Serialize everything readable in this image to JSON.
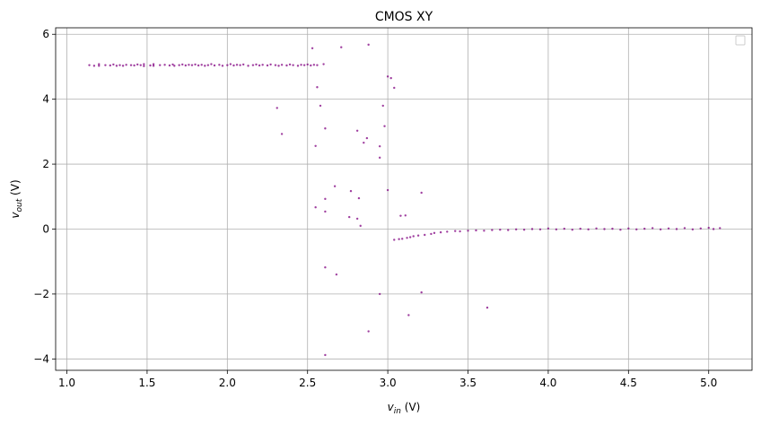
{
  "chart_data": {
    "type": "scatter",
    "title": "CMOS XY",
    "xlabel_main": "v",
    "xlabel_sub": "in",
    "xlabel_unit": " (V)",
    "ylabel_main": "v",
    "ylabel_sub": "out",
    "ylabel_unit": " (V)",
    "xlim": [
      0.93,
      5.27
    ],
    "ylim": [
      -4.35,
      6.2
    ],
    "xticks": [
      1.0,
      1.5,
      2.0,
      2.5,
      3.0,
      3.5,
      4.0,
      4.5,
      5.0
    ],
    "xtick_labels": [
      "1.0",
      "1.5",
      "2.0",
      "2.5",
      "3.0",
      "3.5",
      "4.0",
      "4.5",
      "5.0"
    ],
    "yticks": [
      -4,
      -2,
      0,
      2,
      4,
      6
    ],
    "ytick_labels": [
      "−4",
      "−2",
      "0",
      "2",
      "4",
      "6"
    ],
    "grid": true,
    "legend": "top-right",
    "marker_color": "#800080",
    "points": [
      {
        "x": 1.14,
        "y": 5.05
      },
      {
        "x": 1.17,
        "y": 5.03
      },
      {
        "x": 1.2,
        "y": 5.08
      },
      {
        "x": 1.2,
        "y": 5.03
      },
      {
        "x": 1.24,
        "y": 5.05
      },
      {
        "x": 1.27,
        "y": 5.04
      },
      {
        "x": 1.29,
        "y": 5.07
      },
      {
        "x": 1.31,
        "y": 5.03
      },
      {
        "x": 1.33,
        "y": 5.05
      },
      {
        "x": 1.35,
        "y": 5.03
      },
      {
        "x": 1.37,
        "y": 5.06
      },
      {
        "x": 1.4,
        "y": 5.05
      },
      {
        "x": 1.42,
        "y": 5.04
      },
      {
        "x": 1.44,
        "y": 5.07
      },
      {
        "x": 1.46,
        "y": 5.05
      },
      {
        "x": 1.48,
        "y": 5.08
      },
      {
        "x": 1.48,
        "y": 5.02
      },
      {
        "x": 1.52,
        "y": 5.04
      },
      {
        "x": 1.54,
        "y": 5.08
      },
      {
        "x": 1.54,
        "y": 5.03
      },
      {
        "x": 1.58,
        "y": 5.05
      },
      {
        "x": 1.61,
        "y": 5.06
      },
      {
        "x": 1.64,
        "y": 5.04
      },
      {
        "x": 1.66,
        "y": 5.07
      },
      {
        "x": 1.67,
        "y": 5.03
      },
      {
        "x": 1.7,
        "y": 5.05
      },
      {
        "x": 1.72,
        "y": 5.07
      },
      {
        "x": 1.74,
        "y": 5.04
      },
      {
        "x": 1.76,
        "y": 5.06
      },
      {
        "x": 1.78,
        "y": 5.05
      },
      {
        "x": 1.8,
        "y": 5.07
      },
      {
        "x": 1.82,
        "y": 5.04
      },
      {
        "x": 1.84,
        "y": 5.06
      },
      {
        "x": 1.86,
        "y": 5.03
      },
      {
        "x": 1.88,
        "y": 5.05
      },
      {
        "x": 1.9,
        "y": 5.08
      },
      {
        "x": 1.92,
        "y": 5.04
      },
      {
        "x": 1.95,
        "y": 5.06
      },
      {
        "x": 1.97,
        "y": 5.03
      },
      {
        "x": 2.0,
        "y": 5.05
      },
      {
        "x": 2.02,
        "y": 5.08
      },
      {
        "x": 2.04,
        "y": 5.04
      },
      {
        "x": 2.06,
        "y": 5.06
      },
      {
        "x": 2.08,
        "y": 5.05
      },
      {
        "x": 2.1,
        "y": 5.07
      },
      {
        "x": 2.13,
        "y": 5.03
      },
      {
        "x": 2.16,
        "y": 5.05
      },
      {
        "x": 2.18,
        "y": 5.07
      },
      {
        "x": 2.2,
        "y": 5.04
      },
      {
        "x": 2.22,
        "y": 5.06
      },
      {
        "x": 2.25,
        "y": 5.04
      },
      {
        "x": 2.27,
        "y": 5.07
      },
      {
        "x": 2.3,
        "y": 5.05
      },
      {
        "x": 2.32,
        "y": 5.03
      },
      {
        "x": 2.34,
        "y": 5.06
      },
      {
        "x": 2.37,
        "y": 5.04
      },
      {
        "x": 2.39,
        "y": 5.07
      },
      {
        "x": 2.41,
        "y": 5.05
      },
      {
        "x": 2.44,
        "y": 5.03
      },
      {
        "x": 2.46,
        "y": 5.06
      },
      {
        "x": 2.48,
        "y": 5.05
      },
      {
        "x": 2.5,
        "y": 5.07
      },
      {
        "x": 2.52,
        "y": 5.04
      },
      {
        "x": 2.54,
        "y": 5.06
      },
      {
        "x": 2.56,
        "y": 5.05
      },
      {
        "x": 2.6,
        "y": 5.08
      },
      {
        "x": 2.53,
        "y": 5.57
      },
      {
        "x": 2.71,
        "y": 5.6
      },
      {
        "x": 2.88,
        "y": 5.68
      },
      {
        "x": 2.56,
        "y": 4.37
      },
      {
        "x": 2.58,
        "y": 3.8
      },
      {
        "x": 2.31,
        "y": 3.73
      },
      {
        "x": 2.34,
        "y": 2.93
      },
      {
        "x": 2.61,
        "y": 3.1
      },
      {
        "x": 2.55,
        "y": 2.56
      },
      {
        "x": 2.81,
        "y": 3.03
      },
      {
        "x": 2.87,
        "y": 2.8
      },
      {
        "x": 2.85,
        "y": 2.66
      },
      {
        "x": 2.95,
        "y": 2.55
      },
      {
        "x": 2.95,
        "y": 2.2
      },
      {
        "x": 2.97,
        "y": 3.8
      },
      {
        "x": 2.98,
        "y": 3.17
      },
      {
        "x": 3.0,
        "y": 4.7
      },
      {
        "x": 3.02,
        "y": 4.65
      },
      {
        "x": 3.04,
        "y": 4.35
      },
      {
        "x": 2.67,
        "y": 1.32
      },
      {
        "x": 2.77,
        "y": 1.17
      },
      {
        "x": 2.82,
        "y": 0.95
      },
      {
        "x": 2.61,
        "y": 0.93
      },
      {
        "x": 2.61,
        "y": 0.54
      },
      {
        "x": 2.55,
        "y": 0.67
      },
      {
        "x": 2.76,
        "y": 0.37
      },
      {
        "x": 2.81,
        "y": 0.32
      },
      {
        "x": 2.83,
        "y": 0.1
      },
      {
        "x": 3.0,
        "y": 1.2
      },
      {
        "x": 3.08,
        "y": 0.41
      },
      {
        "x": 3.11,
        "y": 0.42
      },
      {
        "x": 3.21,
        "y": 1.12
      },
      {
        "x": 3.04,
        "y": -0.33
      },
      {
        "x": 3.07,
        "y": -0.31
      },
      {
        "x": 3.09,
        "y": -0.3
      },
      {
        "x": 3.12,
        "y": -0.27
      },
      {
        "x": 3.14,
        "y": -0.25
      },
      {
        "x": 3.16,
        "y": -0.22
      },
      {
        "x": 3.19,
        "y": -0.2
      },
      {
        "x": 3.23,
        "y": -0.18
      },
      {
        "x": 3.27,
        "y": -0.15
      },
      {
        "x": 3.29,
        "y": -0.12
      },
      {
        "x": 3.33,
        "y": -0.1
      },
      {
        "x": 3.37,
        "y": -0.08
      },
      {
        "x": 3.42,
        "y": -0.06
      },
      {
        "x": 3.45,
        "y": -0.07
      },
      {
        "x": 3.5,
        "y": -0.05
      },
      {
        "x": 3.55,
        "y": -0.04
      },
      {
        "x": 3.6,
        "y": -0.05
      },
      {
        "x": 3.65,
        "y": -0.03
      },
      {
        "x": 3.7,
        "y": -0.02
      },
      {
        "x": 3.75,
        "y": -0.03
      },
      {
        "x": 3.8,
        "y": -0.01
      },
      {
        "x": 3.85,
        "y": -0.02
      },
      {
        "x": 3.9,
        "y": 0.0
      },
      {
        "x": 3.95,
        "y": -0.01
      },
      {
        "x": 4.0,
        "y": 0.02
      },
      {
        "x": 4.05,
        "y": -0.01
      },
      {
        "x": 4.1,
        "y": 0.01
      },
      {
        "x": 4.15,
        "y": -0.02
      },
      {
        "x": 4.2,
        "y": 0.01
      },
      {
        "x": 4.25,
        "y": -0.01
      },
      {
        "x": 4.3,
        "y": 0.02
      },
      {
        "x": 4.35,
        "y": 0.0
      },
      {
        "x": 4.4,
        "y": 0.01
      },
      {
        "x": 4.45,
        "y": -0.02
      },
      {
        "x": 4.5,
        "y": 0.02
      },
      {
        "x": 4.55,
        "y": -0.01
      },
      {
        "x": 4.6,
        "y": 0.01
      },
      {
        "x": 4.65,
        "y": 0.03
      },
      {
        "x": 4.7,
        "y": -0.01
      },
      {
        "x": 4.75,
        "y": 0.02
      },
      {
        "x": 4.8,
        "y": 0.0
      },
      {
        "x": 4.85,
        "y": 0.03
      },
      {
        "x": 4.9,
        "y": -0.01
      },
      {
        "x": 4.95,
        "y": 0.02
      },
      {
        "x": 5.0,
        "y": 0.04
      },
      {
        "x": 5.03,
        "y": 0.0
      },
      {
        "x": 5.07,
        "y": 0.03
      },
      {
        "x": 2.61,
        "y": -1.18
      },
      {
        "x": 2.68,
        "y": -1.4
      },
      {
        "x": 2.95,
        "y": -2.0
      },
      {
        "x": 3.21,
        "y": -1.95
      },
      {
        "x": 3.13,
        "y": -2.65
      },
      {
        "x": 3.62,
        "y": -2.42
      },
      {
        "x": 2.88,
        "y": -3.15
      },
      {
        "x": 2.61,
        "y": -3.88
      }
    ]
  }
}
